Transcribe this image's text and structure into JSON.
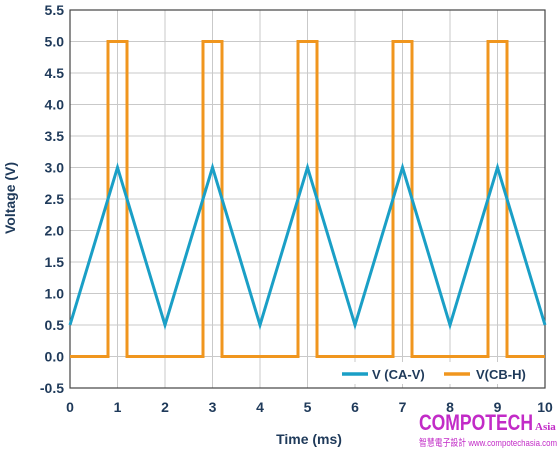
{
  "chart_data": {
    "type": "line",
    "xlabel": "Time (ms)",
    "ylabel": "Voltage (V)",
    "xlim": [
      0,
      10
    ],
    "ylim": [
      -0.5,
      5.5
    ],
    "x_ticks": [
      "0",
      "1",
      "2",
      "3",
      "4",
      "5",
      "6",
      "7",
      "8",
      "9",
      "10"
    ],
    "y_ticks": [
      "-0.5",
      "0.0",
      "0.5",
      "1.0",
      "1.5",
      "2.0",
      "2.5",
      "3.0",
      "3.5",
      "4.0",
      "4.5",
      "5.0",
      "5.5"
    ],
    "grid": true,
    "legend_position": "bottom-right",
    "series": [
      {
        "name": "V (CA-V)",
        "color": "#1a9fc6",
        "x": [
          0,
          1,
          2,
          3,
          4,
          5,
          6,
          7,
          8,
          9,
          10
        ],
        "y": [
          0.5,
          3.0,
          0.5,
          3.0,
          0.5,
          3.0,
          0.5,
          3.0,
          0.5,
          3.0,
          0.5
        ]
      },
      {
        "name": "V(CB-H)",
        "color": "#f0961e",
        "x": [
          0,
          0.8,
          0.8,
          1.2,
          1.2,
          2.8,
          2.8,
          3.2,
          3.2,
          4.8,
          4.8,
          5.2,
          5.2,
          6.8,
          6.8,
          7.2,
          7.2,
          8.8,
          8.8,
          9.2,
          9.2,
          10
        ],
        "y": [
          0,
          0,
          5,
          5,
          0,
          0,
          5,
          5,
          0,
          0,
          5,
          5,
          0,
          0,
          5,
          5,
          0,
          0,
          5,
          5,
          0,
          0
        ]
      }
    ]
  },
  "watermark": {
    "main": "COMPOTECH",
    "suffix": "Asia",
    "sub": "智慧電子設計 www.compotechasia.com"
  }
}
